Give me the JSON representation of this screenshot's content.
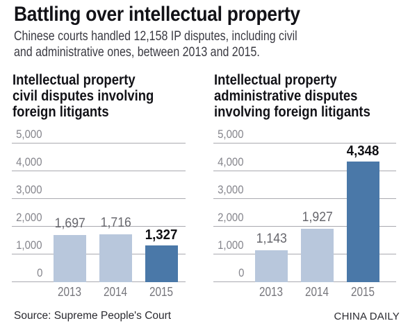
{
  "page": {
    "title": "Battling over intellectual property",
    "subtitle": "Chinese courts handled 12,158 IP disputes, including civil and administrative ones, between 2013 and 2015.",
    "subtitle_lines": [
      "Chinese courts handled 12,158 IP disputes, including civil",
      "and administrative ones, between 2013 and 2015."
    ],
    "source": "Source: Supreme People's Court",
    "credit": "CHINA DAILY"
  },
  "colors": {
    "bar_light": "#b8c7dc",
    "bar_dark": "#4a78a8",
    "gridline": "#a9a9af",
    "tick_label": "#85858c",
    "year_label": "#76767c",
    "value_label": "#66666c",
    "value_label_emphasis": "#0f0f13",
    "heading_text": "#121217"
  },
  "chart_data": [
    {
      "type": "bar",
      "title": "Intellectual property civil disputes involving foreign litigants",
      "title_lines": [
        "Intellectual property",
        "civil disputes involving",
        "foreign litigants"
      ],
      "categories": [
        "2013",
        "2014",
        "2015"
      ],
      "values": [
        1697,
        1716,
        1327
      ],
      "value_labels": [
        "1,697",
        "1,716",
        "1,327"
      ],
      "emphasis_index": 2,
      "xlabel": "",
      "ylabel": "",
      "ylim": [
        0,
        5000
      ],
      "ytick_step": 1000,
      "ytick_labels": [
        "0",
        "1,000",
        "2,000",
        "3,000",
        "4,000",
        "5,000"
      ],
      "grid": true,
      "legend": false
    },
    {
      "type": "bar",
      "title": "Intellectual property administrative disputes involving foreign litigants",
      "title_lines": [
        "Intellectual property",
        "administrative disputes",
        "involving foreign litigants"
      ],
      "categories": [
        "2013",
        "2014",
        "2015"
      ],
      "values": [
        1143,
        1927,
        4348
      ],
      "value_labels": [
        "1,143",
        "1,927",
        "4,348"
      ],
      "emphasis_index": 2,
      "xlabel": "",
      "ylabel": "",
      "ylim": [
        0,
        5000
      ],
      "ytick_step": 1000,
      "ytick_labels": [
        "0",
        "1,000",
        "2,000",
        "3,000",
        "4,000",
        "5,000"
      ],
      "grid": true,
      "legend": false
    }
  ]
}
